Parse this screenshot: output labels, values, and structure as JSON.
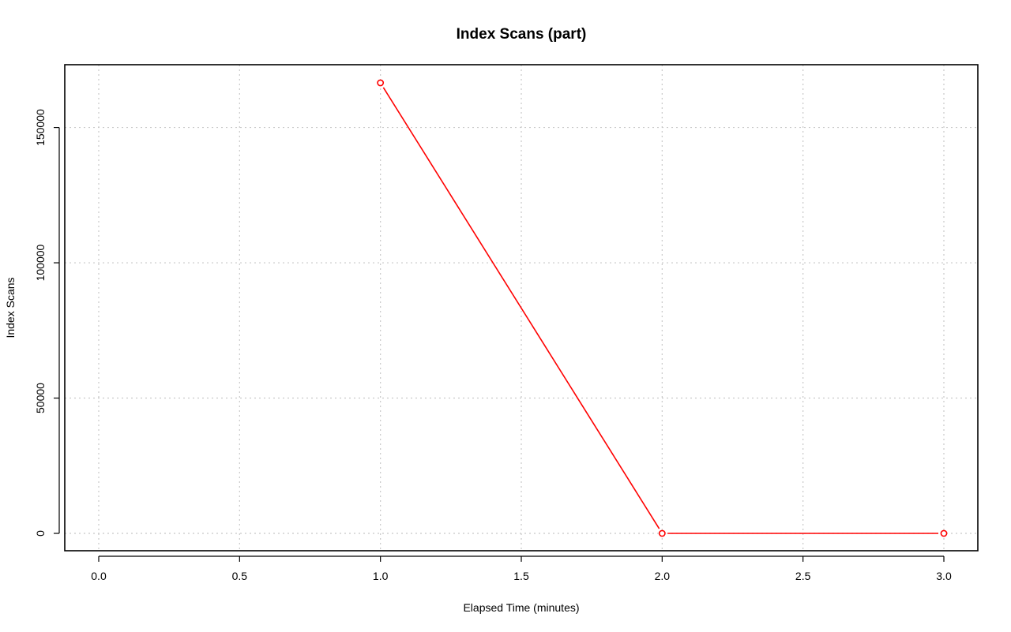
{
  "chart_data": {
    "type": "line",
    "title": "Index Scans (part)",
    "xlabel": "Elapsed Time (minutes)",
    "ylabel": "Index Scans",
    "xlim": [
      0,
      3
    ],
    "ylim": [
      0,
      166500
    ],
    "x_ticks": [
      "0.0",
      "0.5",
      "1.0",
      "1.5",
      "2.0",
      "2.5",
      "3.0"
    ],
    "y_ticks": [
      "0",
      "50000",
      "100000",
      "150000"
    ],
    "grid": true,
    "series": [
      {
        "color": "#ff0000",
        "x": [
          1,
          2,
          3
        ],
        "y": [
          166500,
          0,
          0
        ]
      }
    ]
  }
}
